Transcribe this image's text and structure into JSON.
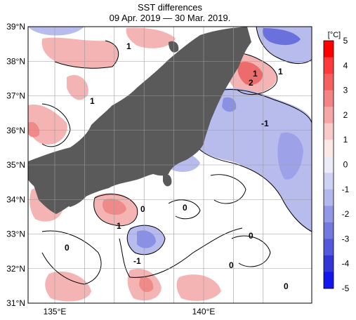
{
  "title": "SST differences",
  "period": "09 Apr. 2019 — 30 Mar. 2019.",
  "unit": "[°C]",
  "lat_labels": [
    "39°N",
    "38°N",
    "37°N",
    "36°N",
    "35°N",
    "34°N",
    "33°N",
    "32°N",
    "31°N"
  ],
  "lon_labels": [
    "135°E",
    "140°E"
  ],
  "colorbar": {
    "ticks": [
      "5",
      "4",
      "3",
      "2",
      "1",
      "0",
      "-1",
      "-2",
      "-3",
      "-4",
      "-5"
    ],
    "colors": [
      "#ff0000",
      "#ff3a3a",
      "#f56060",
      "#f48484",
      "#f6a6a6",
      "#f9caca",
      "#fde8e8",
      "#ececf8",
      "#cdd1f2",
      "#b3b8ec",
      "#9398e6",
      "#7479e0",
      "#5359da",
      "#3336d4",
      "#1414ee"
    ]
  },
  "contour_labels": [
    "1",
    "1",
    "1",
    "2",
    "1",
    "-1",
    "0",
    "0",
    "1",
    "0",
    "-1",
    "0",
    "0",
    "0"
  ],
  "colors": {
    "land": "#5a5a5a",
    "warm": "#f4b4b4",
    "cool": "#b8bcec",
    "grid": "#9a9a9a"
  }
}
